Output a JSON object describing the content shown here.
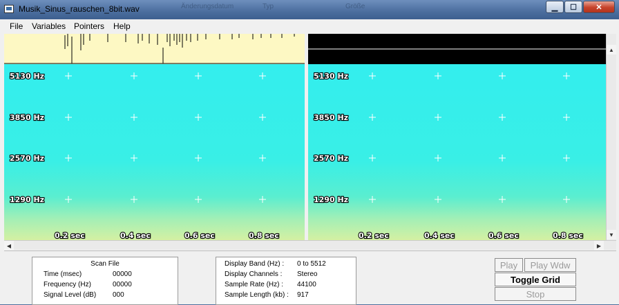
{
  "window": {
    "title": "Musik_Sinus_rauschen_8bit.wav",
    "background_labels": [
      "Änderungsdatum",
      "Typ",
      "Größe"
    ],
    "buttons": {
      "minimize": "▁",
      "maximize": "☐",
      "close": "✕"
    }
  },
  "menu": [
    "File",
    "Variables",
    "Pointers",
    "Help"
  ],
  "spectrogram": {
    "frequency_labels": [
      "5130 Hz",
      "3850 Hz",
      "2570 Hz",
      "1290 Hz"
    ],
    "time_labels": [
      "0.2 sec",
      "0.4 sec",
      "0.6 sec",
      "0.8 sec"
    ],
    "colors": {
      "waveform_bg": "#fdf8c3",
      "cyan": "#33f0f0",
      "green": "#cef0a8",
      "right_header": "#000000"
    }
  },
  "scan_file": {
    "title": "Scan File",
    "rows": [
      {
        "label": "Time (msec)",
        "value": "00000"
      },
      {
        "label": "Frequency (Hz)",
        "value": "00000"
      },
      {
        "label": "Signal Level (dB)",
        "value": "000"
      }
    ]
  },
  "display_info": {
    "rows": [
      {
        "label": "Display Band (Hz) :",
        "value": "0 to 5512"
      },
      {
        "label": "Display Channels :",
        "value": "Stereo"
      },
      {
        "label": "Sample Rate (Hz) :",
        "value": "44100"
      },
      {
        "label": "Sample Length (kb) :",
        "value": "917"
      }
    ]
  },
  "controls": {
    "play": "Play",
    "play_wdw": "Play Wdw",
    "toggle_grid": "Toggle Grid",
    "stop": "Stop"
  }
}
